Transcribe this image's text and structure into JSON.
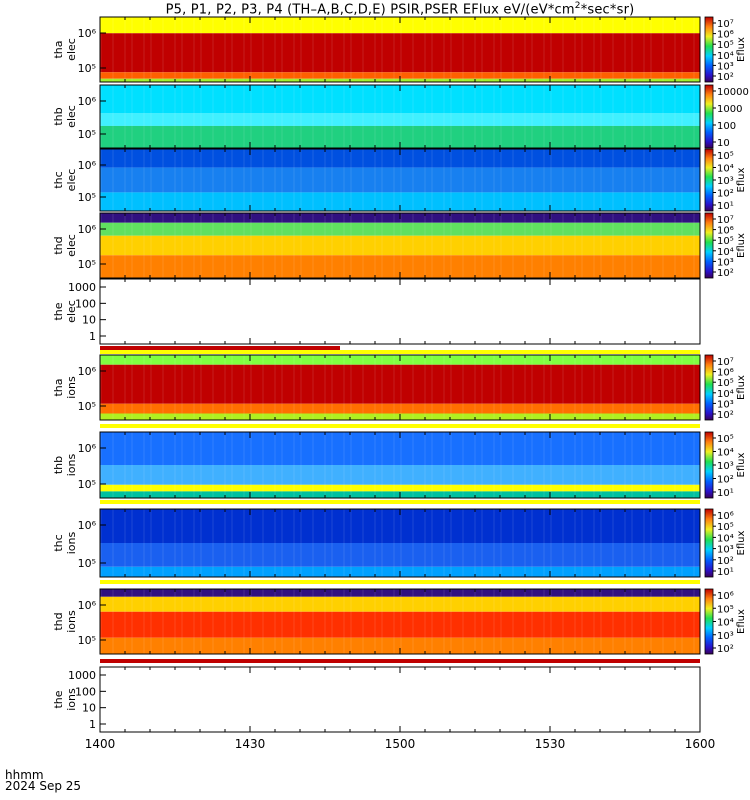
{
  "title_prefix": "P5, P1, P2, P3, P4 (TH–A,B,C,D,E) PSIR,PSER EFlux eV/(eV*cm",
  "title_sup": "2",
  "title_suffix": "*sec*sr)",
  "x_axis": {
    "label_line1": "hhmm",
    "label_line2": "2024 Sep 25",
    "ticks": [
      "1400",
      "1430",
      "1500",
      "1530",
      "1600"
    ]
  },
  "chart_data": [
    {
      "type": "heatmap",
      "panel": "tha elec",
      "ylabel": [
        "tha",
        "elec"
      ],
      "yticks": [
        "10⁵",
        "10⁶"
      ],
      "colorbar": {
        "ticks": [
          "10²",
          "10³",
          "10⁴",
          "10⁵",
          "10⁶",
          "10⁷"
        ],
        "label": "Eflux"
      }
    },
    {
      "type": "heatmap",
      "panel": "thb elec",
      "ylabel": [
        "thb",
        "elec"
      ],
      "yticks": [
        "10⁵",
        "10⁶"
      ],
      "colorbar": {
        "ticks": [
          "10",
          "100",
          "1000",
          "10000"
        ],
        "label": ""
      }
    },
    {
      "type": "heatmap",
      "panel": "thc elec",
      "ylabel": [
        "thc",
        "elec"
      ],
      "yticks": [
        "10⁵",
        "10⁶"
      ],
      "colorbar": {
        "ticks": [
          "10¹",
          "10²",
          "10³",
          "10⁴",
          "10⁵"
        ],
        "label": "Eflux"
      }
    },
    {
      "type": "heatmap",
      "panel": "thd elec",
      "ylabel": [
        "thd",
        "elec"
      ],
      "yticks": [
        "10⁵",
        "10⁶"
      ],
      "colorbar": {
        "ticks": [
          "10²",
          "10³",
          "10⁴",
          "10⁵",
          "10⁶",
          "10⁷"
        ],
        "label": "Eflux"
      }
    },
    {
      "type": "heatmap",
      "panel": "the elec",
      "ylabel": [
        "the",
        "elec"
      ],
      "yticks": [
        "1",
        "10",
        "100",
        "1000"
      ],
      "colorbar": null
    },
    {
      "type": "heatmap",
      "panel": "tha ions",
      "ylabel": [
        "tha",
        "ions"
      ],
      "yticks": [
        "10⁵",
        "10⁶"
      ],
      "colorbar": {
        "ticks": [
          "10²",
          "10³",
          "10⁴",
          "10⁵",
          "10⁶",
          "10⁷"
        ],
        "label": "Eflux"
      }
    },
    {
      "type": "heatmap",
      "panel": "thb ions",
      "ylabel": [
        "thb",
        "ions"
      ],
      "yticks": [
        "10⁵",
        "10⁶"
      ],
      "colorbar": {
        "ticks": [
          "10¹",
          "10²",
          "10³",
          "10⁴",
          "10⁵"
        ],
        "label": "Eflux"
      }
    },
    {
      "type": "heatmap",
      "panel": "thc ions",
      "ylabel": [
        "thc",
        "ions"
      ],
      "yticks": [
        "10⁵",
        "10⁶"
      ],
      "colorbar": {
        "ticks": [
          "10¹",
          "10²",
          "10³",
          "10⁴",
          "10⁵",
          "10⁶"
        ],
        "label": "Eflux"
      }
    },
    {
      "type": "heatmap",
      "panel": "thd ions",
      "ylabel": [
        "thd",
        "ions"
      ],
      "yticks": [
        "10⁵",
        "10⁶"
      ],
      "colorbar": {
        "ticks": [
          "10²",
          "10³",
          "10⁴",
          "10⁵",
          "10⁶"
        ],
        "label": "Eflux"
      }
    },
    {
      "type": "heatmap",
      "panel": "the ions",
      "ylabel": [
        "the",
        "ions"
      ],
      "yticks": [
        "1",
        "10",
        "100",
        "1000"
      ],
      "colorbar": null
    }
  ]
}
